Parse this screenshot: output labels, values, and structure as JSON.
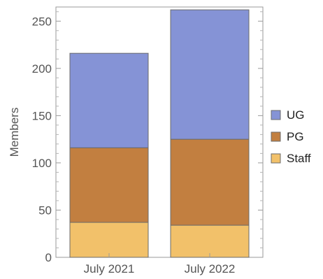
{
  "chart_data": {
    "type": "bar",
    "stacked": true,
    "categories": [
      "July 2021",
      "July 2022"
    ],
    "series": [
      {
        "name": "Staff",
        "values": [
          37,
          34
        ],
        "color": "#f2c16a"
      },
      {
        "name": "PG",
        "values": [
          79,
          91
        ],
        "color": "#c27f40"
      },
      {
        "name": "UG",
        "values": [
          100,
          137
        ],
        "color": "#8593d6"
      }
    ],
    "title": "",
    "xlabel": "",
    "ylabel": "Members",
    "ylim": [
      0,
      265
    ],
    "yticks": [
      "0",
      "50",
      "100",
      "150",
      "200",
      "250"
    ],
    "grid": false,
    "legend": {
      "position": "right",
      "order": [
        "UG",
        "PG",
        "Staff"
      ]
    }
  }
}
